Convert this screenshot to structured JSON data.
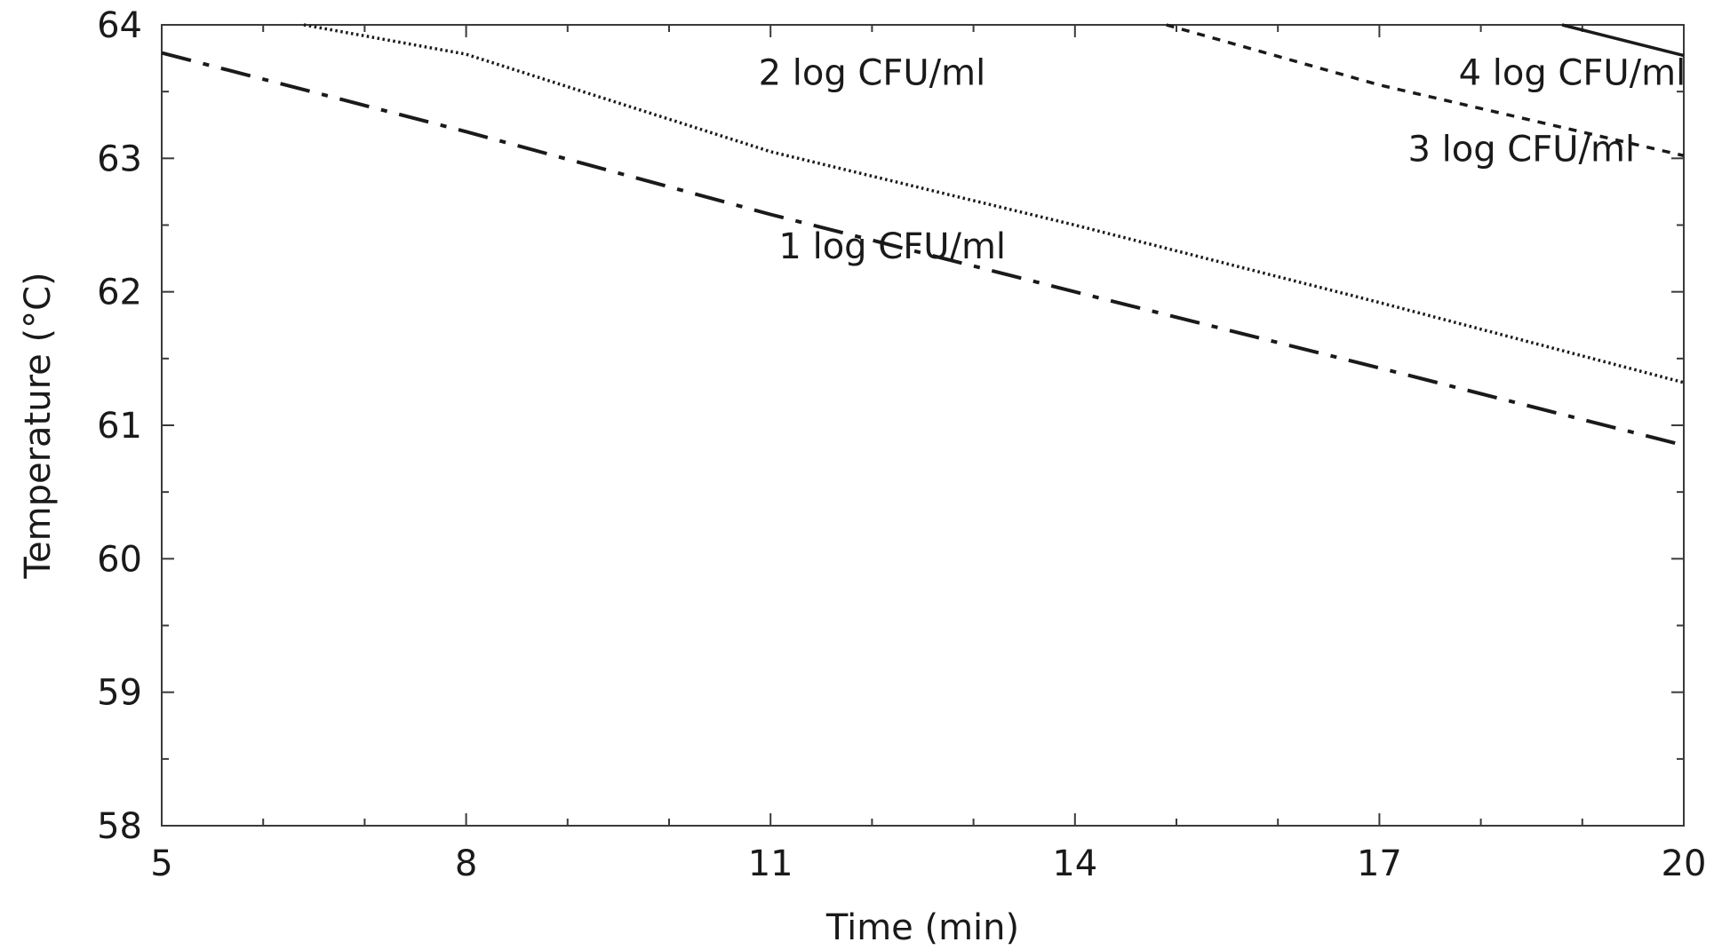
{
  "chart_data": {
    "type": "line",
    "title": "",
    "xlabel": "Time (min)",
    "ylabel": "Temperature (°C)",
    "xlim": [
      5,
      20
    ],
    "ylim": [
      58,
      64
    ],
    "xticks": [
      5,
      8,
      11,
      14,
      17,
      20
    ],
    "yticks": [
      58,
      59,
      60,
      61,
      62,
      63,
      64
    ],
    "xtick_labels": [
      "5",
      "8",
      "11",
      "14",
      "17",
      "20"
    ],
    "ytick_labels": [
      "58",
      "59",
      "60",
      "61",
      "62",
      "63",
      "64"
    ],
    "grid": false,
    "legend": "none",
    "series": [
      {
        "name": "1 log CFU/ml",
        "style": "dash-dot",
        "color": "#1a1a1a",
        "points": [
          [
            5,
            63.79
          ],
          [
            8,
            63.2
          ],
          [
            11,
            62.58
          ],
          [
            14,
            62.0
          ],
          [
            17,
            61.43
          ],
          [
            20,
            60.85
          ]
        ]
      },
      {
        "name": "2 log CFU/ml",
        "style": "dotted",
        "color": "#1a1a1a",
        "points": [
          [
            6.4,
            64.0
          ],
          [
            8,
            63.78
          ],
          [
            11,
            63.05
          ],
          [
            14,
            62.5
          ],
          [
            17,
            61.92
          ],
          [
            20,
            61.32
          ]
        ]
      },
      {
        "name": "3 log CFU/ml",
        "style": "dashed",
        "color": "#1a1a1a",
        "points": [
          [
            14.9,
            64.0
          ],
          [
            17,
            63.55
          ],
          [
            20,
            63.02
          ]
        ]
      },
      {
        "name": "4 log CFU/ml",
        "style": "solid",
        "color": "#1a1a1a",
        "points": [
          [
            18.8,
            64.0
          ],
          [
            20,
            63.77
          ]
        ]
      }
    ],
    "annotations": [
      {
        "text": "1 log CFU/ml",
        "x": 12.2,
        "y": 62.25
      },
      {
        "text": "2 log CFU/ml",
        "x": 12.0,
        "y": 63.55
      },
      {
        "text": "3 log CFU/ml",
        "x": 18.4,
        "y": 62.98
      },
      {
        "text": "4 log CFU/ml",
        "x": 18.9,
        "y": 63.55
      }
    ]
  }
}
